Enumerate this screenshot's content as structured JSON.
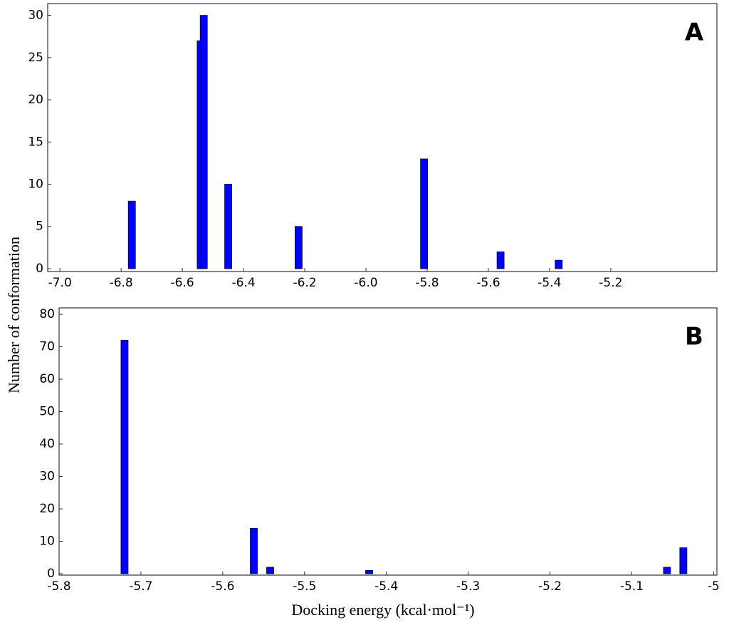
{
  "chart_data": [
    {
      "type": "bar",
      "panel_label": "A",
      "ylabel": "Number of conformation",
      "x": [
        -6.765,
        -6.54,
        -6.53,
        -6.45,
        -6.22,
        -5.81,
        -5.56,
        -5.37
      ],
      "values": [
        8,
        27,
        30,
        10,
        5,
        13,
        2,
        1
      ],
      "color": "#0000ff",
      "xlim": [
        -7.04,
        -4.853
      ],
      "ylim": [
        -0.34,
        31.4
      ],
      "xticks": [
        {
          "value": -7.0,
          "label": "-7.0"
        },
        -6.8,
        -6.6,
        -6.4,
        -6.2,
        {
          "value": -6.0,
          "label": "-6.0"
        },
        -5.8,
        -5.6,
        -5.4,
        -5.2
      ],
      "yticks": [
        0,
        5,
        10,
        15,
        20,
        25,
        30
      ]
    },
    {
      "type": "bar",
      "panel_label": "B",
      "xlabel": "Docking energy (kcal·mol⁻¹)",
      "x": [
        -5.72,
        -5.562,
        -5.542,
        -5.421,
        -5.057,
        -5.037
      ],
      "values": [
        72,
        14,
        2,
        1,
        2,
        8
      ],
      "color": "#0000ff",
      "xlim": [
        -5.8,
        -4.996
      ],
      "ylim": [
        -0.44,
        82
      ],
      "xticks": [
        -5.8,
        -5.7,
        -5.6,
        -5.5,
        -5.4,
        -5.3,
        -5.2,
        -5.1,
        -5
      ],
      "yticks": [
        0,
        10,
        20,
        30,
        40,
        50,
        60,
        70,
        80
      ]
    }
  ]
}
